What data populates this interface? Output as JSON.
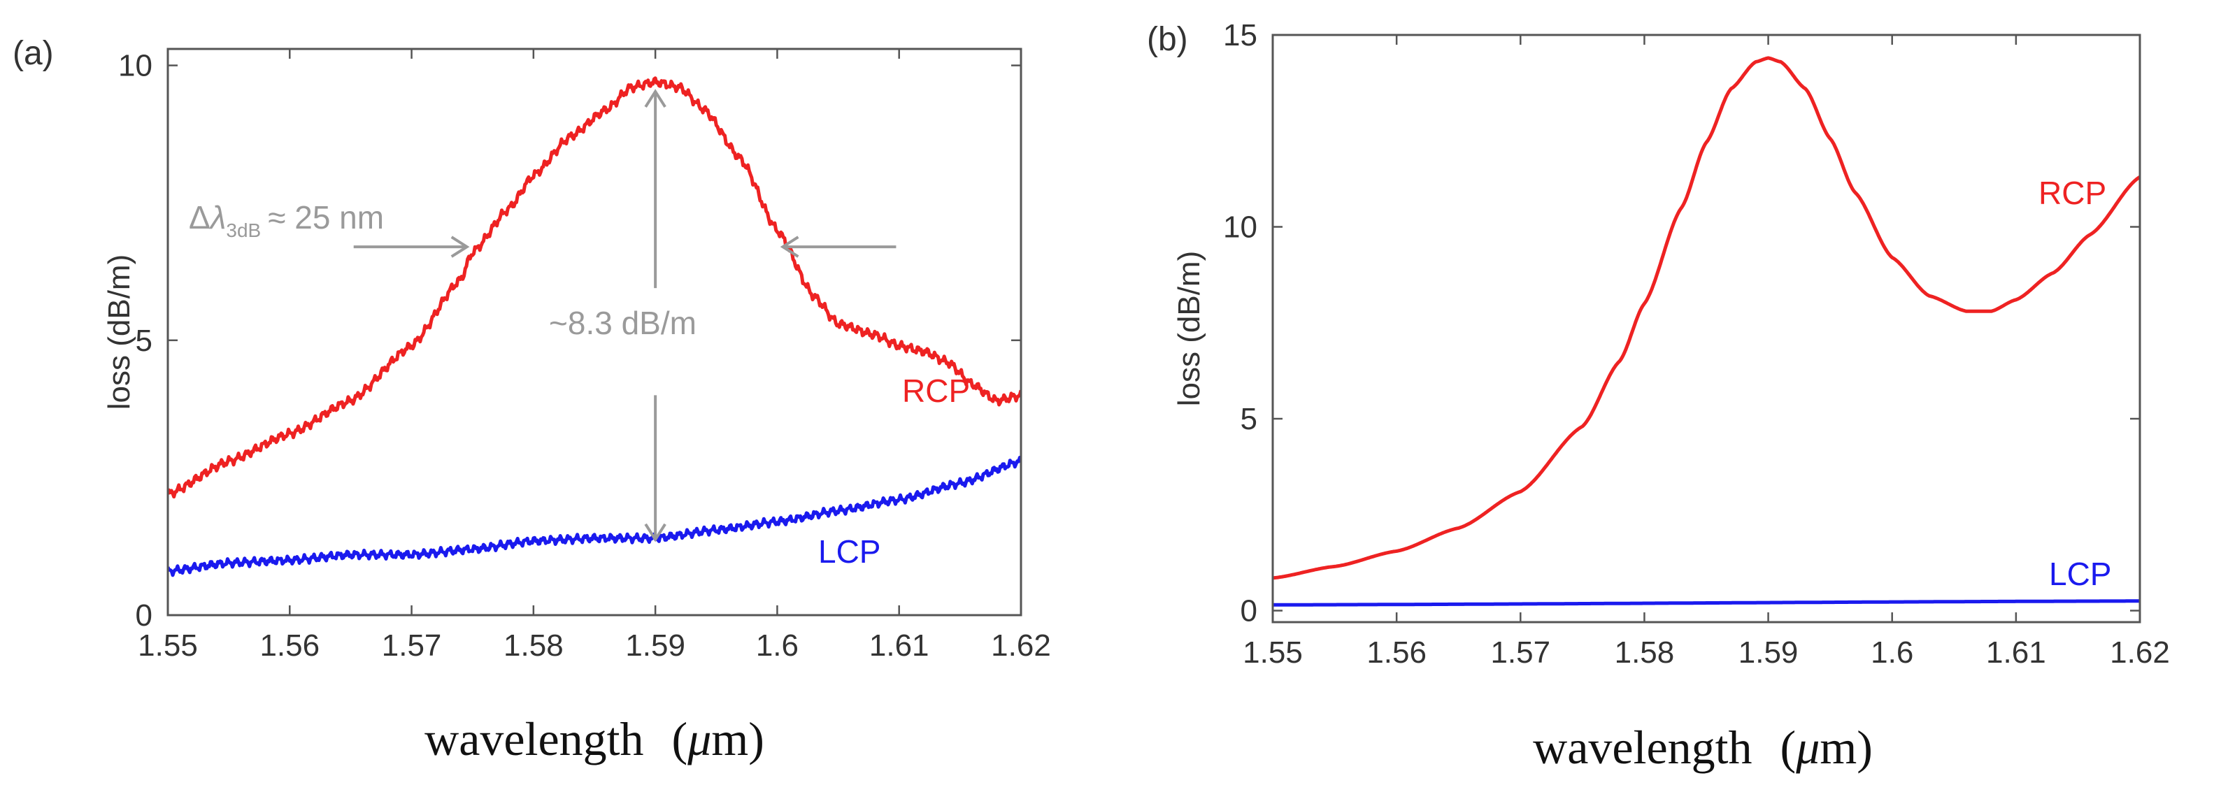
{
  "chart_data": [
    {
      "panel": "(a)",
      "type": "line",
      "xlabel": "wavelength",
      "xlabel_unit_open": "(",
      "xlabel_unit_mu": "μ",
      "xlabel_unit_rest": "m)",
      "ylabel": "loss  (dB/m)",
      "xlim": [
        1.55,
        1.62
      ],
      "ylim": [
        0,
        10.3
      ],
      "xticks": [
        "1.55",
        "1.56",
        "1.57",
        "1.58",
        "1.59",
        "1.6",
        "1.61",
        "1.62"
      ],
      "xtick_values": [
        1.55,
        1.56,
        1.57,
        1.58,
        1.59,
        1.6,
        1.61,
        1.62
      ],
      "yticks": [
        "0",
        "5",
        "10"
      ],
      "ytick_values": [
        0,
        5,
        10
      ],
      "series": [
        {
          "name": "RCP",
          "color": "#ee2222",
          "noise": 0.09,
          "x": [
            1.55,
            1.555,
            1.56,
            1.565,
            1.57,
            1.574,
            1.575,
            1.578,
            1.58,
            1.583,
            1.586,
            1.588,
            1.59,
            1.592,
            1.594,
            1.597,
            1.6,
            1.603,
            1.605,
            1.608,
            1.61,
            1.612,
            1.614,
            1.616,
            1.618,
            1.62
          ],
          "y": [
            2.2,
            2.8,
            3.3,
            3.9,
            4.9,
            6.1,
            6.6,
            7.4,
            8.0,
            8.7,
            9.2,
            9.6,
            9.7,
            9.6,
            9.2,
            8.3,
            7.0,
            5.8,
            5.3,
            5.1,
            4.9,
            4.8,
            4.6,
            4.2,
            3.9,
            4.0
          ]
        },
        {
          "name": "LCP",
          "color": "#1a1aee",
          "noise": 0.08,
          "x": [
            1.55,
            1.555,
            1.56,
            1.565,
            1.57,
            1.575,
            1.58,
            1.585,
            1.59,
            1.595,
            1.6,
            1.605,
            1.61,
            1.615,
            1.62
          ],
          "y": [
            0.8,
            0.95,
            1.0,
            1.1,
            1.1,
            1.2,
            1.35,
            1.4,
            1.4,
            1.55,
            1.7,
            1.9,
            2.1,
            2.4,
            2.8
          ]
        }
      ],
      "annotations": {
        "delta_symbol": "Δ",
        "lambda_symbol": "λ",
        "bandwidth_subscript": "3dB",
        "bandwidth_value": "≈ 25 nm",
        "depth_text": "~8.3 dB/m",
        "color": "#9a9a9a",
        "left_arrow_x": 1.575,
        "right_arrow_x": 1.6,
        "arrow_y": 6.7,
        "depth_arrow_x": 1.59,
        "depth_top_y": 9.55,
        "depth_bottom_y": 1.35
      }
    },
    {
      "panel": "(b)",
      "type": "line",
      "xlabel": "wavelength",
      "xlabel_unit_open": "(",
      "xlabel_unit_mu": "μ",
      "xlabel_unit_rest": "m)",
      "ylabel": "loss  (dB/m)",
      "xlim": [
        1.55,
        1.62
      ],
      "ylim": [
        -0.3,
        15
      ],
      "xticks": [
        "1.55",
        "1.56",
        "1.57",
        "1.58",
        "1.59",
        "1.6",
        "1.61",
        "1.62"
      ],
      "xtick_values": [
        1.55,
        1.56,
        1.57,
        1.58,
        1.59,
        1.6,
        1.61,
        1.62
      ],
      "yticks": [
        "0",
        "5",
        "10",
        "15"
      ],
      "ytick_values": [
        0,
        5,
        10,
        15
      ],
      "series": [
        {
          "name": "RCP",
          "color": "#ee2222",
          "noise": 0,
          "x": [
            1.55,
            1.555,
            1.56,
            1.565,
            1.57,
            1.575,
            1.578,
            1.58,
            1.583,
            1.585,
            1.587,
            1.589,
            1.59,
            1.591,
            1.593,
            1.595,
            1.597,
            1.6,
            1.603,
            1.606,
            1.608,
            1.61,
            1.613,
            1.616,
            1.62
          ],
          "y": [
            0.85,
            1.15,
            1.55,
            2.15,
            3.1,
            4.8,
            6.5,
            8.0,
            10.5,
            12.2,
            13.6,
            14.3,
            14.4,
            14.3,
            13.6,
            12.3,
            10.9,
            9.2,
            8.2,
            7.8,
            7.8,
            8.1,
            8.8,
            9.8,
            11.3
          ]
        },
        {
          "name": "LCP",
          "color": "#1a1aee",
          "noise": 0,
          "x": [
            1.55,
            1.62
          ],
          "y": [
            0.15,
            0.25
          ]
        }
      ]
    }
  ]
}
